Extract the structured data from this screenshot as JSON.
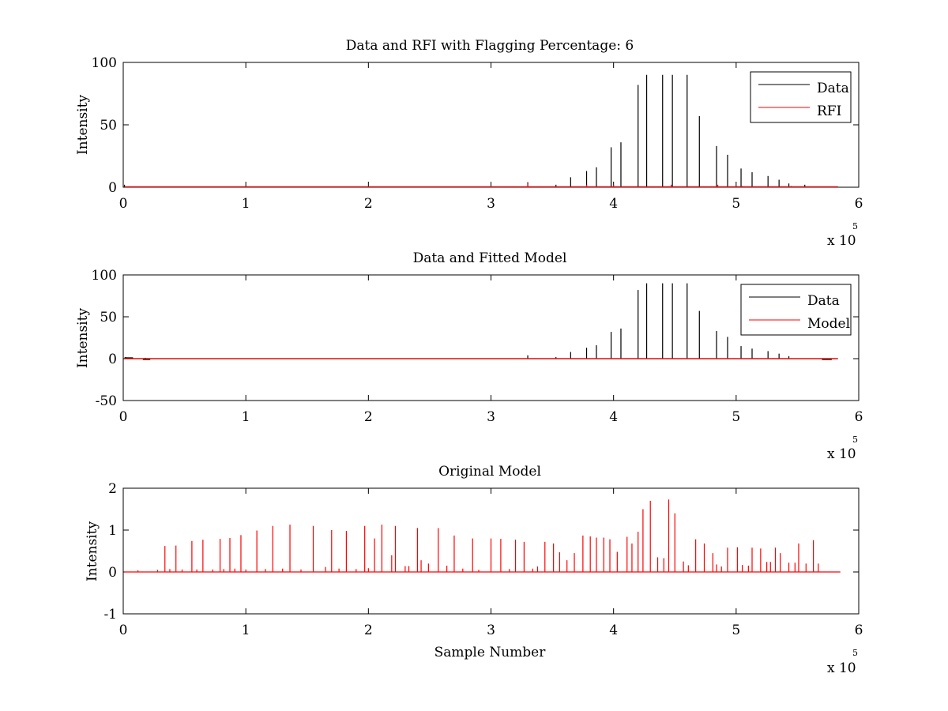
{
  "colors": {
    "data": "#000000",
    "rfi": "#ff0000",
    "model": "#ff0000",
    "original": "#ff0000",
    "axis": "#000000",
    "background": "#ffffff"
  },
  "chart_data": [
    {
      "type": "line",
      "title": "Data and RFI with Flagging Percentage: 6",
      "xlabel": "",
      "ylabel": "Intensity",
      "xlim": [
        0,
        600000
      ],
      "ylim": [
        0,
        100
      ],
      "xticks": [
        0,
        1,
        2,
        3,
        4,
        5,
        6
      ],
      "yticks": [
        0,
        50,
        100
      ],
      "x_multiplier": "x 10",
      "x_multiplier_exponent": "5",
      "legend": {
        "position": "top-right",
        "entries": [
          "Data",
          "RFI"
        ]
      },
      "series": [
        {
          "name": "Data",
          "color": "#000000",
          "baseline": 0.3,
          "x": [
            1000,
            330000,
            353000,
            365000,
            378000,
            386000,
            398000,
            406000,
            420000,
            427000,
            440000,
            448000,
            460000,
            470000,
            484000,
            493000,
            504000,
            513000,
            526000,
            535000,
            543000,
            556000
          ],
          "y": [
            2,
            4,
            2,
            8,
            13,
            16,
            32,
            36,
            82,
            90,
            90,
            90,
            90,
            57,
            33,
            26,
            15,
            12,
            9,
            6,
            3,
            2
          ]
        },
        {
          "name": "RFI",
          "color": "#ff0000",
          "baseline": 0.3,
          "x": [
            330000,
            378000,
            400000,
            447000,
            485000,
            505000,
            545000
          ],
          "y": [
            3,
            2,
            2,
            2,
            2,
            1,
            1
          ]
        }
      ]
    },
    {
      "type": "line",
      "title": "Data and Fitted Model",
      "xlabel": "",
      "ylabel": "Intensity",
      "xlim": [
        0,
        600000
      ],
      "ylim": [
        -50,
        100
      ],
      "xticks": [
        0,
        1,
        2,
        3,
        4,
        5,
        6
      ],
      "yticks": [
        -50,
        0,
        50,
        100
      ],
      "x_multiplier": "x 10",
      "x_multiplier_exponent": "5",
      "legend": {
        "position": "top-right",
        "entries": [
          "Data",
          "Model"
        ]
      },
      "series": [
        {
          "name": "Data",
          "color": "#000000",
          "baseline": 0,
          "x": [
            2000,
            18000,
            330000,
            353000,
            365000,
            378000,
            386000,
            398000,
            406000,
            420000,
            427000,
            440000,
            448000,
            460000,
            470000,
            484000,
            493000,
            504000,
            513000,
            526000,
            535000,
            543000,
            574000
          ],
          "y": [
            2,
            1,
            4,
            2,
            8,
            13,
            16,
            32,
            36,
            82,
            90,
            90,
            90,
            90,
            57,
            33,
            26,
            15,
            12,
            9,
            6,
            3,
            -1
          ],
          "segments": [
            {
              "x": [
                1000,
                8000
              ],
              "y": 1
            },
            {
              "x": [
                16000,
                22000
              ],
              "y": -1
            },
            {
              "x": [
                570000,
                578000
              ],
              "y": -1
            }
          ]
        },
        {
          "name": "Model",
          "color": "#ff0000",
          "baseline": 0,
          "x": [],
          "y": []
        }
      ]
    },
    {
      "type": "line",
      "title": "Original Model",
      "xlabel": "Sample Number",
      "ylabel": "Intensity",
      "xlim": [
        0,
        600000
      ],
      "ylim": [
        -1,
        2
      ],
      "xticks": [
        0,
        1,
        2,
        3,
        4,
        5,
        6
      ],
      "yticks": [
        -1,
        0,
        1,
        2
      ],
      "x_multiplier": "x 10",
      "x_multiplier_exponent": "5",
      "series": [
        {
          "color": "#ff0000",
          "baseline": 0,
          "x": [
            12000,
            28000,
            34000,
            38000,
            43000,
            48000,
            56000,
            60000,
            65000,
            73000,
            79000,
            82000,
            87000,
            91000,
            96000,
            100000,
            109000,
            116000,
            122000,
            130000,
            136000,
            145000,
            155000,
            165000,
            170000,
            176000,
            182000,
            190000,
            197000,
            200000,
            205000,
            211000,
            219000,
            222000,
            230000,
            233000,
            240000,
            243000,
            249000,
            257000,
            264000,
            270000,
            277000,
            285000,
            290000,
            300000,
            308000,
            315000,
            320000,
            327000,
            334000,
            338000,
            344000,
            351000,
            356000,
            362000,
            368000,
            375000,
            381000,
            386000,
            392000,
            397000,
            403000,
            411000,
            415000,
            420000,
            424000,
            430000,
            436000,
            441000,
            445000,
            450000,
            457000,
            461000,
            467000,
            474000,
            481000,
            484000,
            488000,
            493000,
            501000,
            505000,
            510000,
            513000,
            520000,
            525000,
            528000,
            532000,
            536000,
            543000,
            548000,
            551000,
            557000,
            563000,
            567000
          ],
          "y": [
            0.04,
            0.05,
            0.62,
            0.07,
            0.63,
            0.06,
            0.74,
            0.06,
            0.77,
            0.06,
            0.79,
            0.07,
            0.81,
            0.08,
            0.88,
            0.06,
            0.99,
            0.07,
            1.1,
            0.08,
            1.13,
            0.06,
            1.1,
            0.12,
            1.0,
            0.08,
            0.98,
            0.07,
            1.1,
            0.09,
            0.8,
            1.13,
            0.4,
            1.1,
            0.14,
            0.14,
            1.05,
            0.28,
            0.2,
            1.05,
            0.15,
            0.87,
            0.08,
            0.8,
            0.05,
            0.8,
            0.79,
            0.07,
            0.77,
            0.72,
            0.08,
            0.13,
            0.72,
            0.68,
            0.47,
            0.28,
            0.45,
            0.87,
            0.85,
            0.82,
            0.82,
            0.78,
            0.48,
            0.84,
            0.68,
            0.96,
            1.5,
            1.7,
            0.35,
            0.33,
            1.73,
            1.4,
            0.25,
            0.16,
            0.78,
            0.68,
            0.45,
            0.18,
            0.13,
            0.58,
            0.59,
            0.17,
            0.15,
            0.58,
            0.56,
            0.24,
            0.24,
            0.58,
            0.45,
            0.22,
            0.22,
            0.68,
            0.2,
            0.76,
            0.2
          ],
          "baseline_end": 585000
        }
      ]
    }
  ]
}
